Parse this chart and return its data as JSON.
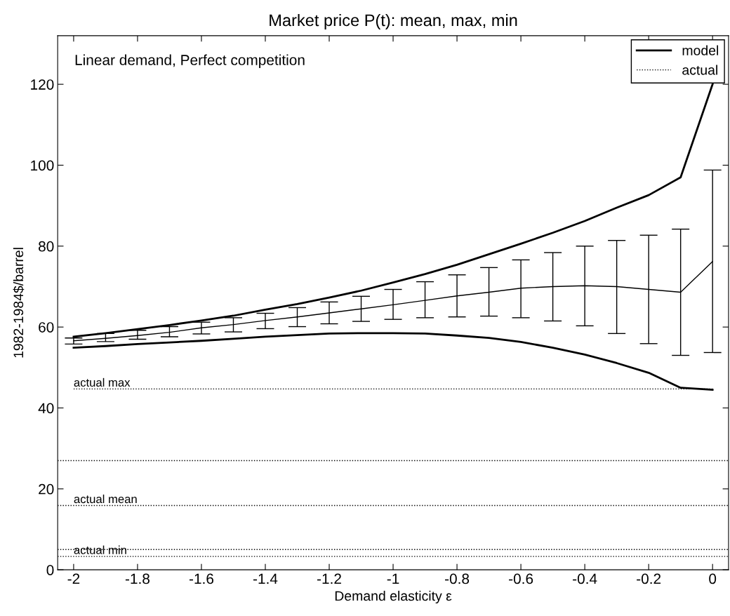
{
  "chart_data": {
    "type": "line",
    "title": "Market price P(t): mean, max, min",
    "xlabel": "Demand elasticity ε",
    "ylabel": "1982-1984$/barrel",
    "x": [
      -2,
      -1.9,
      -1.8,
      -1.7,
      -1.6,
      -1.5,
      -1.4,
      -1.3,
      -1.2,
      -1.1,
      -1.0,
      -0.9,
      -0.8,
      -0.7,
      -0.6,
      -0.5,
      -0.4,
      -0.3,
      -0.2,
      -0.1,
      0
    ],
    "series": [
      {
        "name": "model",
        "color": "#000000",
        "values": [
          57.6,
          58.5,
          59.5,
          60.5,
          61.6,
          62.8,
          64.3,
          65.7,
          67.3,
          69.0,
          71.0,
          73.1,
          75.4,
          78.0,
          80.6,
          83.3,
          86.2,
          89.5,
          92.6,
          97.0,
          120
        ]
      },
      {
        "color": "#000000",
        "values": [
          54.9,
          55.3,
          55.8,
          56.2,
          56.6,
          57.1,
          57.6,
          58.0,
          58.4,
          58.5,
          58.5,
          58.4,
          57.9,
          57.3,
          56.3,
          54.9,
          53.2,
          51.1,
          48.7,
          45.0,
          44.5
        ]
      },
      {
        "color": "#000000",
        "values": [
          56.6,
          57.2,
          57.9,
          58.7,
          59.8,
          60.6,
          61.6,
          62.5,
          63.5,
          64.5,
          65.5,
          66.6,
          67.7,
          68.6,
          69.6,
          70.0,
          70.2,
          70.0,
          69.3,
          68.6,
          76.2
        ],
        "errors": [
          [
            55.8,
            57.3
          ],
          [
            56.4,
            58.4
          ],
          [
            57.0,
            59.2
          ],
          [
            57.6,
            60.1
          ],
          [
            58.3,
            61.2
          ],
          [
            58.8,
            62.3
          ],
          [
            59.6,
            63.4
          ],
          [
            60.1,
            64.8
          ],
          [
            60.8,
            66.2
          ],
          [
            61.4,
            67.6
          ],
          [
            61.9,
            69.3
          ],
          [
            62.3,
            71.2
          ],
          [
            62.5,
            72.9
          ],
          [
            62.7,
            74.7
          ],
          [
            62.3,
            76.6
          ],
          [
            61.5,
            78.4
          ],
          [
            60.3,
            80.0
          ],
          [
            58.4,
            81.4
          ],
          [
            55.9,
            82.7
          ],
          [
            53.0,
            84.2
          ],
          [
            53.7,
            98.8
          ]
        ]
      },
      {
        "name": "actual",
        "color": "#000000",
        "line_style": "dotted",
        "values": [
          44.7,
          44.7,
          44.7,
          44.7,
          44.7,
          44.7,
          44.7,
          44.7,
          44.7,
          44.7,
          44.7,
          44.7,
          44.7,
          44.7,
          44.7,
          44.7,
          44.7,
          44.7,
          44.7,
          44.7,
          44.7
        ]
      }
    ],
    "ref_lines": [
      {
        "axis": "y",
        "value": 27.0,
        "label": null,
        "color": "#000000",
        "line_style": "dotted"
      },
      {
        "axis": "y",
        "value": 15.9,
        "label": "actual mean",
        "color": "#000000",
        "line_style": "dotted"
      },
      {
        "axis": "y",
        "value": 5.0,
        "label": null,
        "color": "#000000",
        "line_style": "dotted"
      },
      {
        "axis": "y",
        "value": 3.3,
        "label": "actual min",
        "color": "#000000",
        "line_style": "dotted"
      }
    ],
    "annotations": [
      "Linear demand, Perfect competition",
      "actual max"
    ],
    "xlim": [
      -2.05,
      0.05
    ],
    "ylim": [
      0,
      132
    ],
    "xticks": [
      {
        "value": -2,
        "label": "-2"
      },
      {
        "value": -1.8,
        "label": "-1.8"
      },
      {
        "value": -1.6,
        "label": "-1.6"
      },
      {
        "value": -1.4,
        "label": "-1.4"
      },
      {
        "value": -1.2,
        "label": "-1.2"
      },
      {
        "value": -1,
        "label": "-1"
      },
      {
        "value": -0.8,
        "label": "-0.8"
      },
      {
        "value": -0.6,
        "label": "-0.6"
      },
      {
        "value": -0.4,
        "label": "-0.4"
      },
      {
        "value": -0.2,
        "label": "-0.2"
      },
      0
    ],
    "yticks": [
      0,
      20,
      40,
      60,
      80,
      100,
      120
    ],
    "grid": false,
    "legend": "top right",
    "line_style": "solid",
    "marker": "none"
  }
}
